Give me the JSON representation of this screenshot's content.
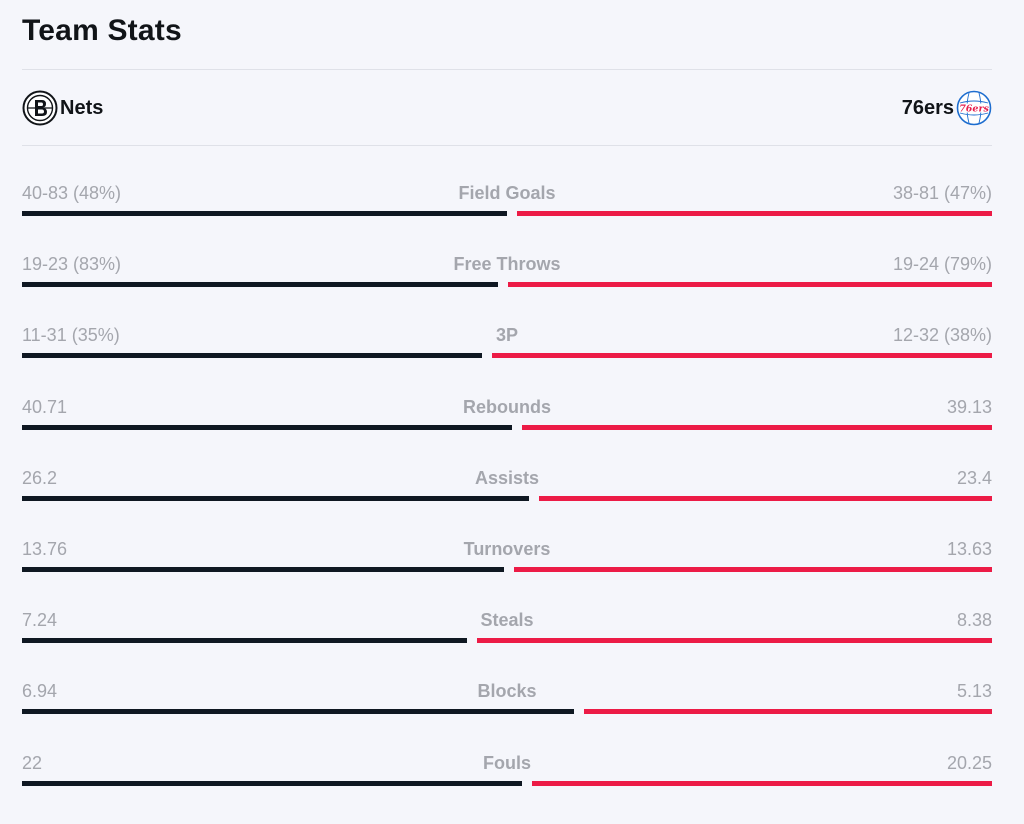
{
  "title": "Team Stats",
  "teams": {
    "home": {
      "name": "Nets",
      "logo_icon": "nets-logo-icon",
      "color": "#0f1822"
    },
    "away": {
      "name": "76ers",
      "logo_icon": "76ers-logo-icon",
      "logo_text": "76ers",
      "color": "#ec1b46"
    }
  },
  "stats": [
    {
      "label": "Field Goals",
      "home": "40-83 (48%)",
      "away": "38-81 (47%)",
      "home_share": 0.5051
    },
    {
      "label": "Free Throws",
      "home": "19-23 (83%)",
      "away": "19-24 (79%)",
      "home_share": 0.4958
    },
    {
      "label": "3P",
      "home": "11-31 (35%)",
      "away": "12-32 (38%)",
      "home_share": 0.4795
    },
    {
      "label": "Rebounds",
      "home": "40.71",
      "away": "39.13",
      "home_share": 0.5099
    },
    {
      "label": "Assists",
      "home": "26.2",
      "away": "23.4",
      "home_share": 0.5282
    },
    {
      "label": "Turnovers",
      "home": "13.76",
      "away": "13.63",
      "home_share": 0.5024
    },
    {
      "label": "Steals",
      "home": "7.24",
      "away": "8.38",
      "home_share": 0.4635
    },
    {
      "label": "Blocks",
      "home": "6.94",
      "away": "5.13",
      "home_share": 0.575
    },
    {
      "label": "Fouls",
      "home": "22",
      "away": "20.25",
      "home_share": 0.5207
    }
  ]
}
